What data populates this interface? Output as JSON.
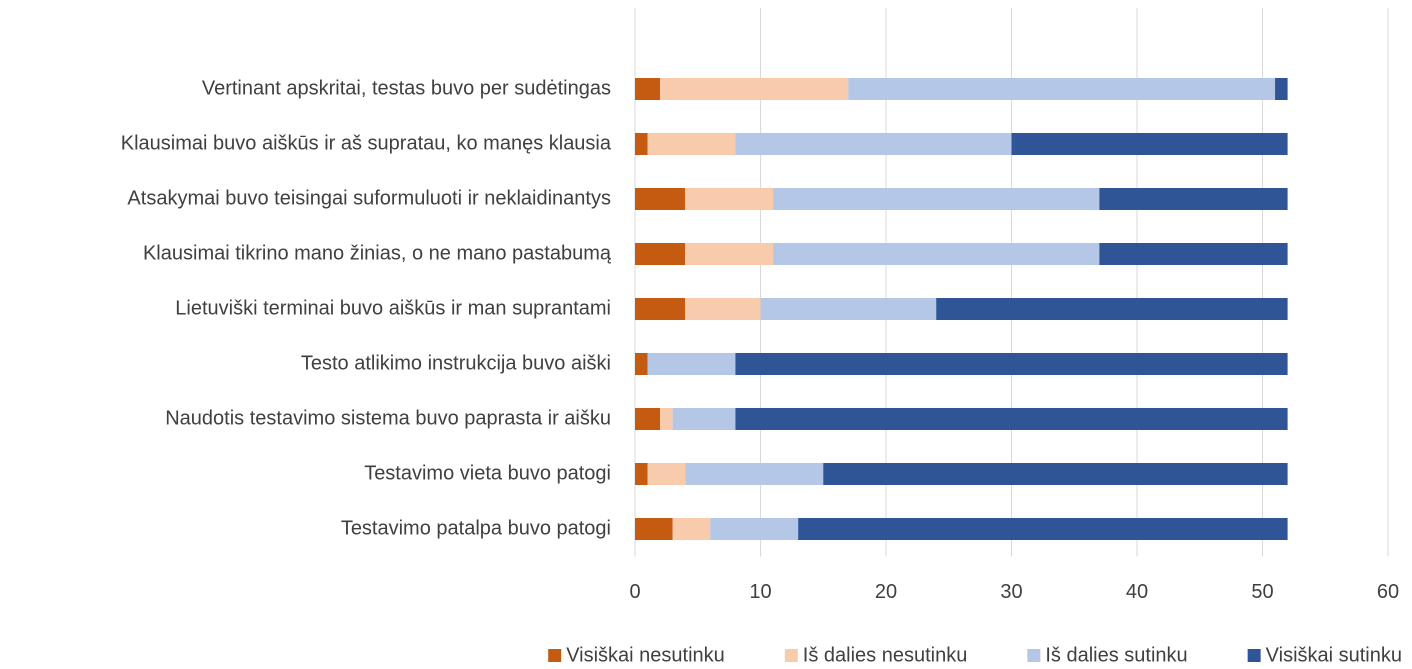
{
  "chart_data": {
    "type": "stacked_barh",
    "categories": [
      "Vertinant apskritai, testas buvo per sudėtingas",
      "Klausimai buvo aiškūs ir aš supratau, ko manęs klausia",
      "Atsakymai buvo teisingai suformuluoti ir neklaidinantys",
      "Klausimai tikrino mano žinias, o ne mano pastabumą",
      "Lietuviški terminai buvo aiškūs ir man suprantami",
      "Testo atlikimo instrukcija buvo aiški",
      "Naudotis testavimo sistema buvo paprasta ir aišku",
      "Testavimo vieta buvo patogi",
      "Testavimo patalpa buvo patogi"
    ],
    "series": [
      {
        "name": "Visiškai nesutinku",
        "color": "#c55a11",
        "values": [
          2,
          1,
          4,
          4,
          4,
          1,
          2,
          1,
          3
        ]
      },
      {
        "name": "Iš dalies nesutinku",
        "color": "#f8cbad",
        "values": [
          15,
          7,
          7,
          7,
          6,
          0,
          1,
          3,
          3
        ]
      },
      {
        "name": "Iš dalies sutinku",
        "color": "#b4c7e7",
        "values": [
          34,
          22,
          26,
          26,
          14,
          7,
          5,
          11,
          7
        ]
      },
      {
        "name": "Visiškai sutinku",
        "color": "#2f5597",
        "values": [
          1,
          22,
          15,
          15,
          28,
          44,
          44,
          37,
          39
        ]
      }
    ],
    "xlim": [
      0,
      60
    ],
    "xticks": [
      0,
      10,
      20,
      30,
      40,
      50,
      60
    ],
    "grid": true,
    "legend": "bottom"
  }
}
